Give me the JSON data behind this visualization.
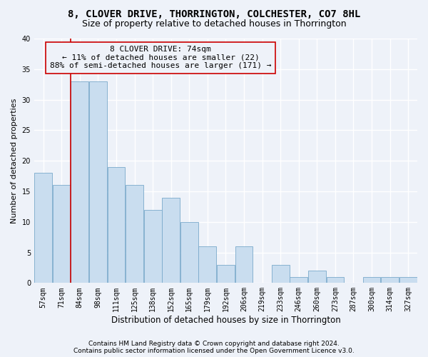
{
  "title": "8, CLOVER DRIVE, THORRINGTON, COLCHESTER, CO7 8HL",
  "subtitle": "Size of property relative to detached houses in Thorrington",
  "xlabel": "Distribution of detached houses by size in Thorrington",
  "ylabel": "Number of detached properties",
  "categories": [
    "57sqm",
    "71sqm",
    "84sqm",
    "98sqm",
    "111sqm",
    "125sqm",
    "138sqm",
    "152sqm",
    "165sqm",
    "179sqm",
    "192sqm",
    "206sqm",
    "219sqm",
    "233sqm",
    "246sqm",
    "260sqm",
    "273sqm",
    "287sqm",
    "300sqm",
    "314sqm",
    "327sqm"
  ],
  "values": [
    18,
    16,
    33,
    33,
    19,
    16,
    12,
    14,
    10,
    6,
    3,
    6,
    0,
    3,
    1,
    2,
    1,
    0,
    1,
    1,
    1
  ],
  "bar_color": "#c9ddef",
  "bar_edge_color": "#7aaacb",
  "vline_x": 1.5,
  "annotation_lines": [
    "8 CLOVER DRIVE: 74sqm",
    "← 11% of detached houses are smaller (22)",
    "88% of semi-detached houses are larger (171) →"
  ],
  "vline_color": "#cc0000",
  "annotation_box_edge_color": "#cc0000",
  "ylim": [
    0,
    40
  ],
  "yticks": [
    0,
    5,
    10,
    15,
    20,
    25,
    30,
    35,
    40
  ],
  "footnote1": "Contains HM Land Registry data © Crown copyright and database right 2024.",
  "footnote2": "Contains public sector information licensed under the Open Government Licence v3.0.",
  "background_color": "#eef2f9",
  "grid_color": "#ffffff",
  "title_fontsize": 10,
  "subtitle_fontsize": 9,
  "xlabel_fontsize": 8.5,
  "ylabel_fontsize": 8,
  "tick_fontsize": 7,
  "annotation_fontsize": 8,
  "footnote_fontsize": 6.5
}
